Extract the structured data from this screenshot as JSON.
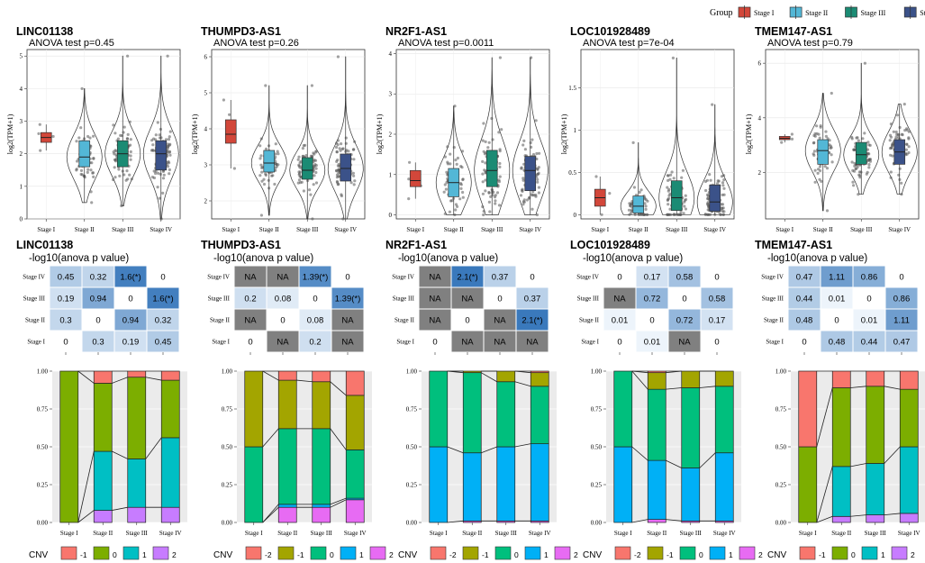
{
  "legend": {
    "title": "Group",
    "items": [
      {
        "label": "Stage I",
        "color": "#D2473A"
      },
      {
        "label": "Stage II",
        "color": "#53B7D6"
      },
      {
        "label": "Stage III",
        "color": "#1B8B74"
      },
      {
        "label": "Stage IV",
        "color": "#3B5289"
      }
    ]
  },
  "groups": [
    "Stage I",
    "Stage II",
    "Stage III",
    "Stage IV"
  ],
  "y_axis_label": "log2(TPM+1)",
  "heat_title": "-log10(anova p value)",
  "cnv_legend_title": "CNV",
  "cnv_colors": {
    "-2": "#F8766D",
    "-1": "#A3A500",
    "0": "#00BF7D",
    "1": "#00B0F6",
    "2": "#E76BF3"
  },
  "cnv_colors_alt": {
    "-1": "#F8766D",
    "0": "#7CAE00",
    "1": "#00BFC4",
    "2": "#C77CFF"
  },
  "na_color": "#808080",
  "heat_colors": {
    "low": "#F0F6FC",
    "high": "#3A79BC"
  },
  "chart_data": [
    {
      "type": "violin",
      "gene": "LINC01138",
      "subtitle": "ANOVA test p=0.45",
      "ylim": [
        0,
        5.2
      ],
      "yticks": [
        0,
        1,
        2,
        3,
        4,
        5
      ],
      "groups": [
        {
          "name": "Stage I",
          "median": 2.5,
          "q1": 2.35,
          "q3": 2.65,
          "min": 2.1,
          "max": 2.9,
          "n": 4
        },
        {
          "name": "Stage II",
          "median": 1.9,
          "q1": 1.6,
          "q3": 2.4,
          "min": 0.5,
          "max": 4.0,
          "n": 60
        },
        {
          "name": "Stage III",
          "median": 2.0,
          "q1": 1.6,
          "q3": 2.4,
          "min": 0.4,
          "max": 5.0,
          "n": 75
        },
        {
          "name": "Stage IV",
          "median": 2.0,
          "q1": 1.5,
          "q3": 2.4,
          "min": 0.0,
          "max": 5.0,
          "n": 85
        }
      ],
      "heatmap": {
        "rows": [
          "Stage IV",
          "Stage III",
          "Stage II",
          "Stage I"
        ],
        "cols": [
          "Stage I",
          "Stage II",
          "Stage III",
          "Stage IV"
        ],
        "cells": [
          [
            "0.45",
            "0.32",
            "1.6(*)",
            "0"
          ],
          [
            "0.19",
            "0.94",
            "0",
            "1.6(*)"
          ],
          [
            "0.3",
            "0",
            "0.94",
            "0.32"
          ],
          [
            "0",
            "0.3",
            "0.19",
            "0.45"
          ]
        ]
      },
      "cnv": {
        "levels": [
          "-1",
          "0",
          "1",
          "2"
        ],
        "palette": "alt",
        "stacks": [
          {
            "group": "Stage I",
            "values": [
              0,
              1.0,
              0,
              0
            ]
          },
          {
            "group": "Stage II",
            "values": [
              0.08,
              0.45,
              0.39,
              0.08
            ]
          },
          {
            "group": "Stage III",
            "values": [
              0.04,
              0.54,
              0.32,
              0.1
            ]
          },
          {
            "group": "Stage IV",
            "values": [
              0.06,
              0.38,
              0.46,
              0.1
            ]
          }
        ]
      }
    },
    {
      "type": "violin",
      "gene": "THUMPD3-AS1",
      "subtitle": "ANOVA test p=0.26",
      "ylim": [
        1.5,
        6.2
      ],
      "yticks": [
        2,
        3,
        4,
        5,
        6
      ],
      "groups": [
        {
          "name": "Stage I",
          "median": 3.85,
          "q1": 3.6,
          "q3": 4.25,
          "min": 2.9,
          "max": 4.8,
          "n": 4
        },
        {
          "name": "Stage II",
          "median": 3.05,
          "q1": 2.8,
          "q3": 3.4,
          "min": 1.6,
          "max": 5.2,
          "n": 60
        },
        {
          "name": "Stage III",
          "median": 2.85,
          "q1": 2.6,
          "q3": 3.2,
          "min": 1.5,
          "max": 5.2,
          "n": 75
        },
        {
          "name": "Stage IV",
          "median": 2.9,
          "q1": 2.55,
          "q3": 3.3,
          "min": 1.5,
          "max": 6.0,
          "n": 85
        }
      ],
      "heatmap": {
        "rows": [
          "Stage IV",
          "Stage III",
          "Stage II",
          "Stage I"
        ],
        "cols": [
          "Stage I",
          "Stage II",
          "Stage III",
          "Stage IV"
        ],
        "cells": [
          [
            "NA",
            "NA",
            "1.39(*)",
            "0"
          ],
          [
            "0.2",
            "0.08",
            "0",
            "1.39(*)"
          ],
          [
            "NA",
            "0",
            "0.08",
            "NA"
          ],
          [
            "0",
            "NA",
            "0.2",
            "NA"
          ]
        ]
      },
      "cnv": {
        "levels": [
          "-2",
          "-1",
          "0",
          "1",
          "2"
        ],
        "palette": "std",
        "stacks": [
          {
            "group": "Stage I",
            "values": [
              0,
              0.5,
              0.5,
              0,
              0
            ]
          },
          {
            "group": "Stage II",
            "values": [
              0.06,
              0.32,
              0.5,
              0.02,
              0.1
            ]
          },
          {
            "group": "Stage III",
            "values": [
              0.07,
              0.31,
              0.5,
              0.02,
              0.1
            ]
          },
          {
            "group": "Stage IV",
            "values": [
              0.16,
              0.36,
              0.32,
              0.01,
              0.15
            ]
          }
        ]
      }
    },
    {
      "type": "violin",
      "gene": "NR2F1-AS1",
      "subtitle": "ANOVA test p=0.0011",
      "ylim": [
        -0.1,
        4.1
      ],
      "yticks": [
        0,
        1,
        2,
        3,
        4
      ],
      "groups": [
        {
          "name": "Stage I",
          "median": 0.85,
          "q1": 0.7,
          "q3": 1.1,
          "min": 0.4,
          "max": 1.3,
          "n": 4
        },
        {
          "name": "Stage II",
          "median": 0.8,
          "q1": 0.45,
          "q3": 1.15,
          "min": 0.0,
          "max": 2.7,
          "n": 60
        },
        {
          "name": "Stage III",
          "median": 1.1,
          "q1": 0.7,
          "q3": 1.6,
          "min": 0.0,
          "max": 3.9,
          "n": 75
        },
        {
          "name": "Stage IV",
          "median": 1.1,
          "q1": 0.6,
          "q3": 1.45,
          "min": 0.0,
          "max": 3.9,
          "n": 85
        }
      ],
      "heatmap": {
        "rows": [
          "Stage IV",
          "Stage III",
          "Stage II",
          "Stage I"
        ],
        "cols": [
          "Stage I",
          "Stage II",
          "Stage III",
          "Stage IV"
        ],
        "cells": [
          [
            "NA",
            "2.1(*)",
            "0.37",
            "0"
          ],
          [
            "NA",
            "NA",
            "0",
            "0.37"
          ],
          [
            "NA",
            "0",
            "NA",
            "2.1(*)"
          ],
          [
            "0",
            "NA",
            "NA",
            "NA"
          ]
        ]
      },
      "cnv": {
        "levels": [
          "-2",
          "-1",
          "0",
          "1",
          "2"
        ],
        "palette": "std",
        "stacks": [
          {
            "group": "Stage I",
            "values": [
              0,
              0,
              0.5,
              0.5,
              0
            ]
          },
          {
            "group": "Stage II",
            "values": [
              0,
              0.01,
              0.53,
              0.45,
              0.01
            ]
          },
          {
            "group": "Stage III",
            "values": [
              0,
              0.07,
              0.43,
              0.49,
              0.01
            ]
          },
          {
            "group": "Stage IV",
            "values": [
              0.01,
              0.09,
              0.38,
              0.51,
              0.01
            ]
          }
        ]
      }
    },
    {
      "type": "violin",
      "gene": "LOC101928489",
      "subtitle": "ANOVA test p=7e-04",
      "ylim": [
        -0.05,
        1.95
      ],
      "yticks": [
        0,
        0.5,
        1.0,
        1.5
      ],
      "groups": [
        {
          "name": "Stage I",
          "median": 0.2,
          "q1": 0.1,
          "q3": 0.3,
          "min": 0.0,
          "max": 0.45,
          "n": 4
        },
        {
          "name": "Stage II",
          "median": 0.1,
          "q1": 0.02,
          "q3": 0.22,
          "min": 0.0,
          "max": 0.85,
          "n": 60
        },
        {
          "name": "Stage III",
          "median": 0.2,
          "q1": 0.05,
          "q3": 0.4,
          "min": 0.0,
          "max": 1.85,
          "n": 75
        },
        {
          "name": "Stage IV",
          "median": 0.15,
          "q1": 0.04,
          "q3": 0.35,
          "min": 0.0,
          "max": 1.3,
          "n": 85
        }
      ],
      "heatmap": {
        "rows": [
          "Stage IV",
          "Stage III",
          "Stage II",
          "Stage I"
        ],
        "cols": [
          "Stage I",
          "Stage II",
          "Stage III",
          "Stage IV"
        ],
        "cells": [
          [
            "0",
            "0.17",
            "0.58",
            "0"
          ],
          [
            "NA",
            "0.72",
            "0",
            "0.58"
          ],
          [
            "0.01",
            "0",
            "0.72",
            "0.17"
          ],
          [
            "0",
            "0.01",
            "NA",
            "0"
          ]
        ]
      },
      "cnv": {
        "levels": [
          "-2",
          "-1",
          "0",
          "1",
          "2"
        ],
        "palette": "std",
        "stacks": [
          {
            "group": "Stage I",
            "values": [
              0,
              0,
              0.5,
              0.5,
              0
            ]
          },
          {
            "group": "Stage II",
            "values": [
              0.01,
              0.11,
              0.47,
              0.39,
              0.02
            ]
          },
          {
            "group": "Stage III",
            "values": [
              0,
              0.11,
              0.53,
              0.35,
              0.01
            ]
          },
          {
            "group": "Stage IV",
            "values": [
              0,
              0.1,
              0.44,
              0.45,
              0.01
            ]
          }
        ]
      }
    },
    {
      "type": "violin",
      "gene": "TMEM147-AS1",
      "subtitle": "ANOVA test p=0.79",
      "ylim": [
        0.3,
        6.5
      ],
      "yticks": [
        2,
        4,
        6
      ],
      "groups": [
        {
          "name": "Stage I",
          "median": 3.25,
          "q1": 3.2,
          "q3": 3.32,
          "min": 3.1,
          "max": 3.4,
          "n": 3
        },
        {
          "name": "Stage II",
          "median": 2.8,
          "q1": 2.3,
          "q3": 3.2,
          "min": 0.6,
          "max": 4.9,
          "n": 60
        },
        {
          "name": "Stage III",
          "median": 2.65,
          "q1": 2.3,
          "q3": 3.1,
          "min": 1.2,
          "max": 6.0,
          "n": 75
        },
        {
          "name": "Stage IV",
          "median": 2.75,
          "q1": 2.3,
          "q3": 3.2,
          "min": 1.2,
          "max": 4.5,
          "n": 85
        }
      ],
      "heatmap": {
        "rows": [
          "Stage IV",
          "Stage III",
          "Stage II",
          "Stage I"
        ],
        "cols": [
          "Stage I",
          "Stage II",
          "Stage III",
          "Stage IV"
        ],
        "cells": [
          [
            "0.47",
            "1.11",
            "0.86",
            "0"
          ],
          [
            "0.44",
            "0.01",
            "0",
            "0.86"
          ],
          [
            "0.48",
            "0",
            "0.01",
            "1.11"
          ],
          [
            "0",
            "0.48",
            "0.44",
            "0.47"
          ]
        ]
      },
      "cnv": {
        "levels": [
          "-1",
          "0",
          "1",
          "2"
        ],
        "palette": "alt",
        "stacks": [
          {
            "group": "Stage I",
            "values": [
              0.5,
              0.5,
              0,
              0
            ]
          },
          {
            "group": "Stage II",
            "values": [
              0.11,
              0.52,
              0.33,
              0.04
            ]
          },
          {
            "group": "Stage III",
            "values": [
              0.1,
              0.51,
              0.34,
              0.05
            ]
          },
          {
            "group": "Stage IV",
            "values": [
              0.12,
              0.38,
              0.44,
              0.06
            ]
          }
        ]
      }
    }
  ]
}
